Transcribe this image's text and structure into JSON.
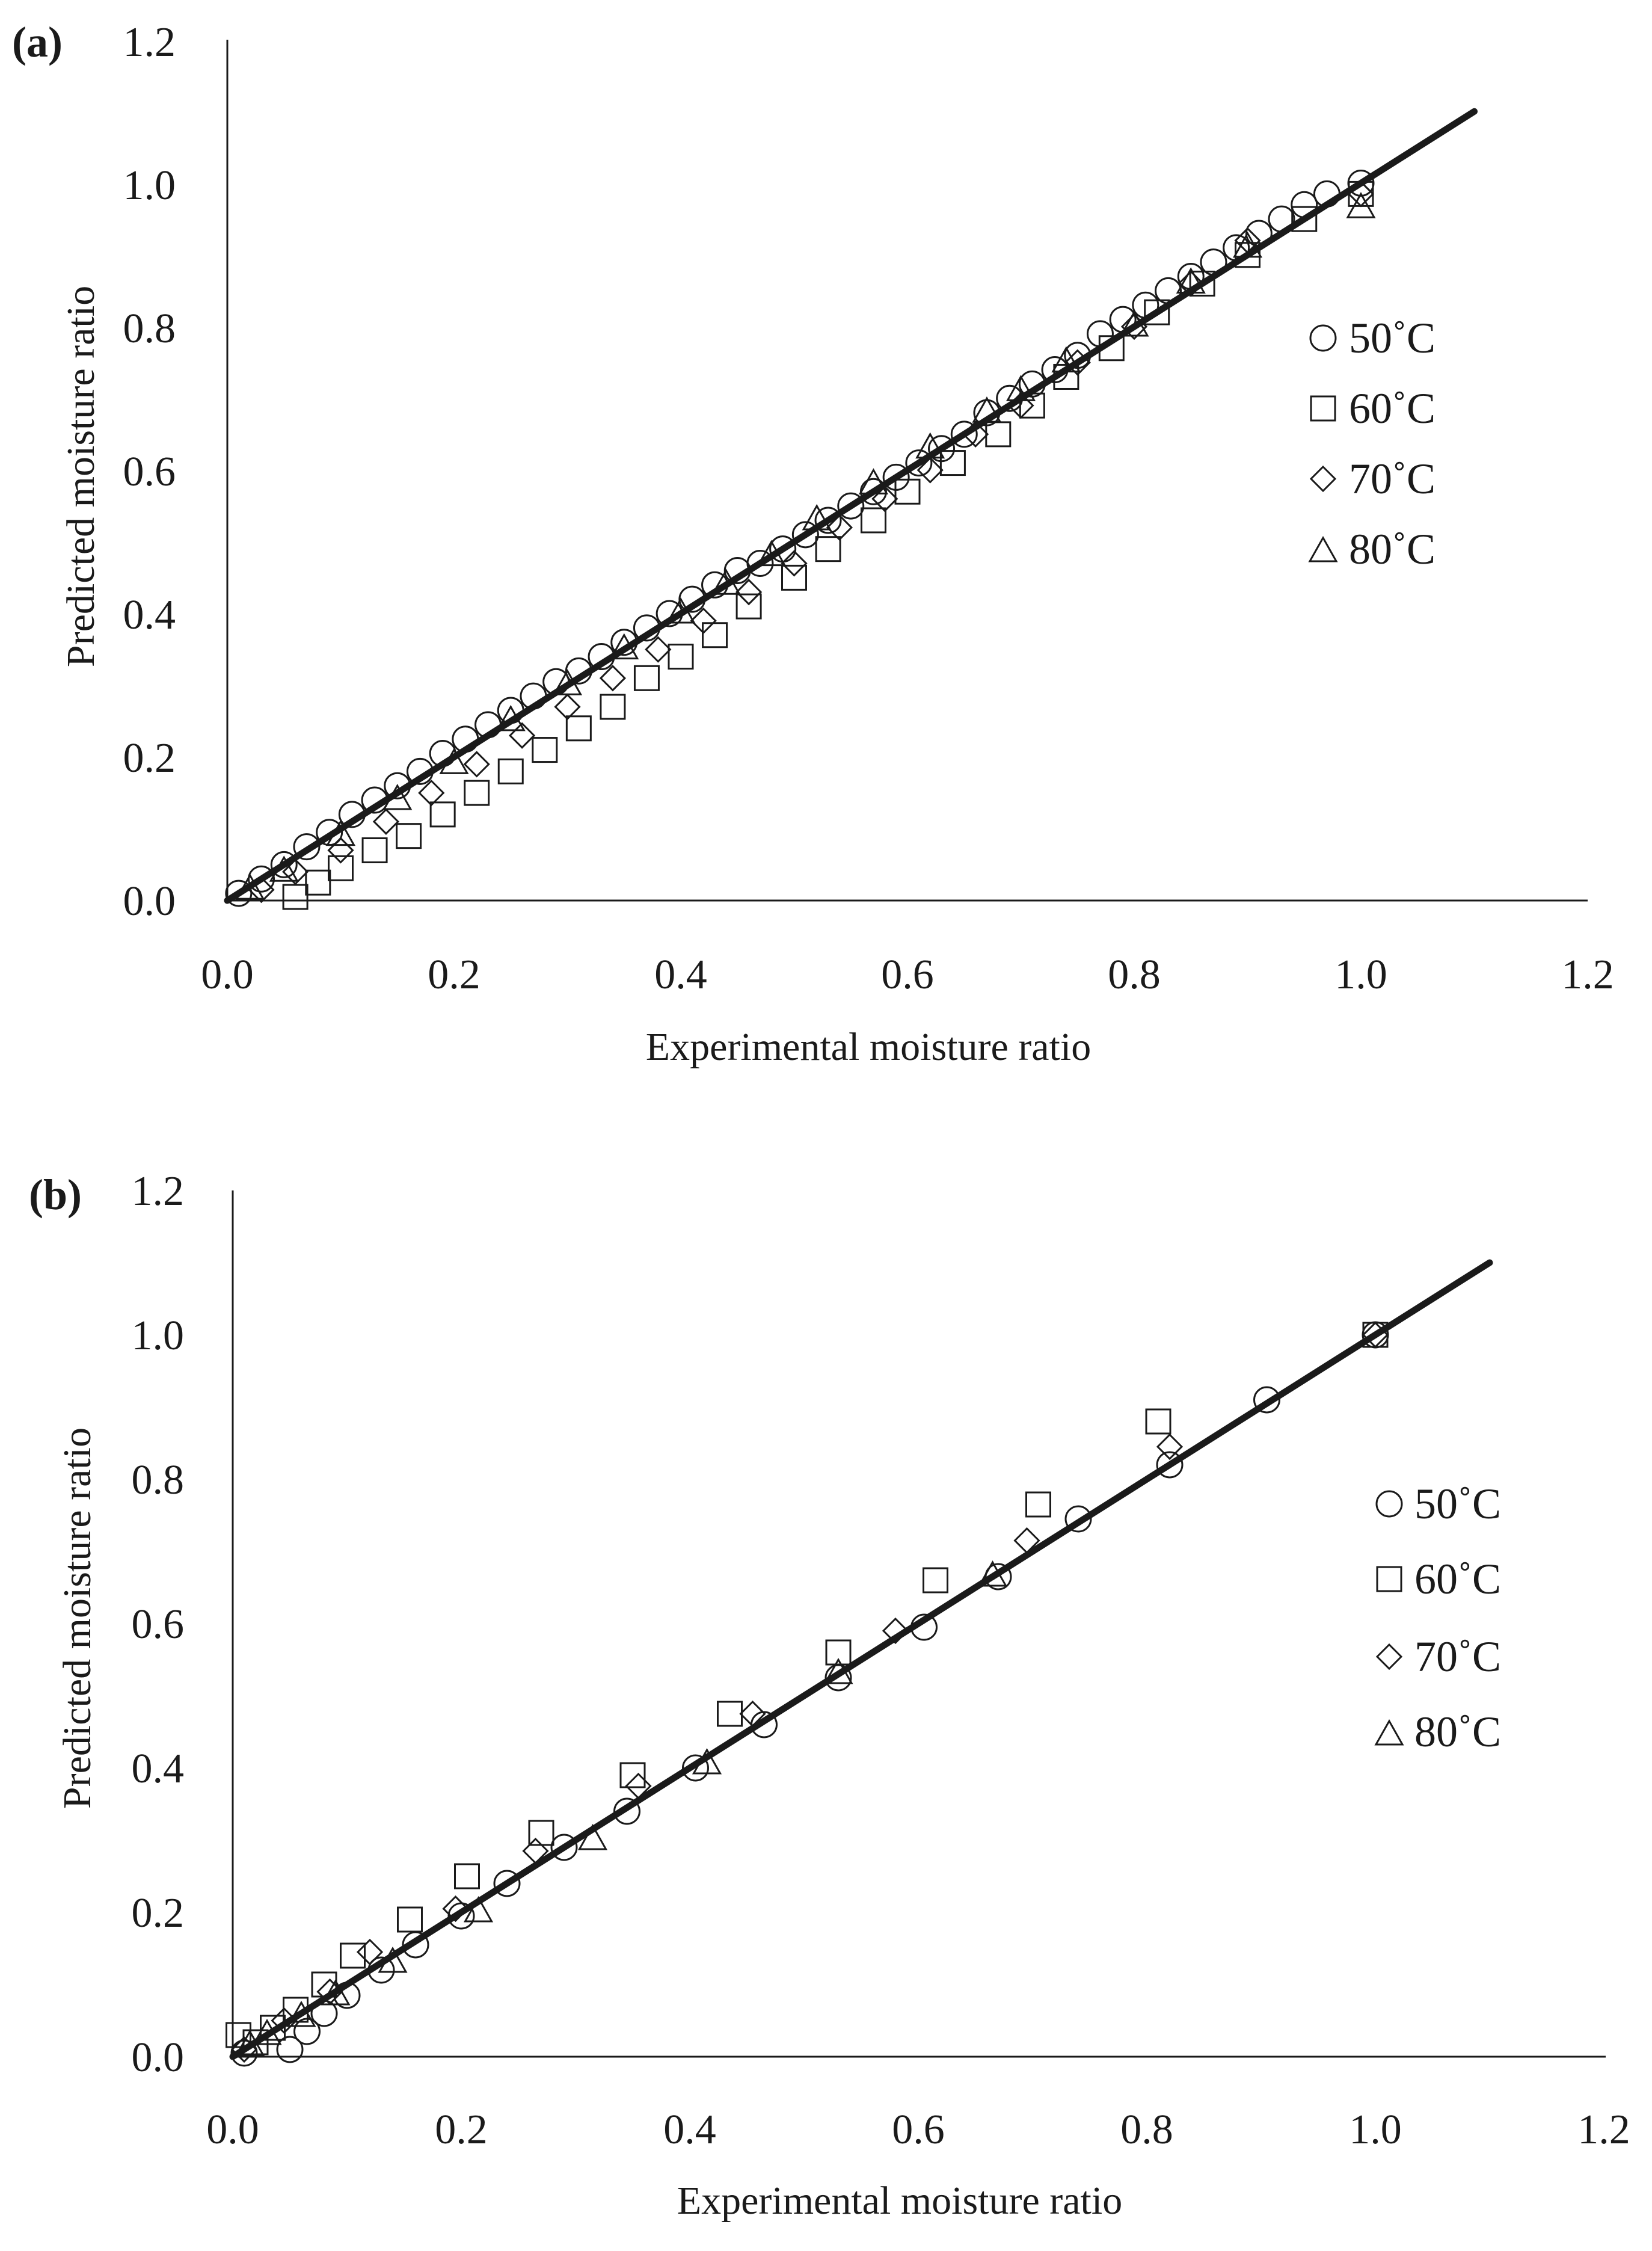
{
  "colors": {
    "ink": "#1a1a1a",
    "background": "#ffffff"
  },
  "chart_data": [
    {
      "panel_label": "(a)",
      "type": "scatter",
      "xlabel": "Experimental moisture ratio",
      "ylabel": "Predicted moisture ratio",
      "xlim": [
        0,
        1.2
      ],
      "ylim": [
        0,
        1.2
      ],
      "x_ticks": [
        "0.0",
        "0.2",
        "0.4",
        "0.6",
        "0.8",
        "1.0",
        "1.2"
      ],
      "y_ticks": [
        "0.0",
        "0.2",
        "0.4",
        "0.6",
        "0.8",
        "1.0",
        "1.2"
      ],
      "grid": false,
      "legend_position": "right",
      "reference_line": {
        "x": [
          0,
          1.1
        ],
        "y": [
          0,
          1.1
        ]
      },
      "series": [
        {
          "name": "50˚C",
          "marker": "circle-marker-icon",
          "x": [
            1.0,
            0.97,
            0.95,
            0.93,
            0.91,
            0.89,
            0.87,
            0.85,
            0.83,
            0.81,
            0.79,
            0.77,
            0.75,
            0.73,
            0.71,
            0.69,
            0.67,
            0.65,
            0.63,
            0.61,
            0.59,
            0.57,
            0.55,
            0.53,
            0.51,
            0.49,
            0.47,
            0.45,
            0.43,
            0.41,
            0.39,
            0.37,
            0.35,
            0.33,
            0.31,
            0.29,
            0.27,
            0.25,
            0.23,
            0.21,
            0.19,
            0.17,
            0.15,
            0.13,
            0.11,
            0.09,
            0.07,
            0.05,
            0.03,
            0.01
          ],
          "y": [
            1.0,
            0.985,
            0.97,
            0.95,
            0.93,
            0.91,
            0.89,
            0.87,
            0.85,
            0.83,
            0.81,
            0.79,
            0.76,
            0.74,
            0.72,
            0.7,
            0.68,
            0.65,
            0.63,
            0.61,
            0.59,
            0.57,
            0.55,
            0.53,
            0.51,
            0.49,
            0.47,
            0.46,
            0.44,
            0.42,
            0.4,
            0.38,
            0.36,
            0.34,
            0.32,
            0.305,
            0.285,
            0.265,
            0.245,
            0.225,
            0.205,
            0.18,
            0.16,
            0.14,
            0.12,
            0.095,
            0.075,
            0.05,
            0.03,
            0.01
          ]
        },
        {
          "name": "60˚C",
          "marker": "square-marker-icon",
          "x": [
            1.0,
            0.95,
            0.9,
            0.86,
            0.82,
            0.78,
            0.74,
            0.71,
            0.68,
            0.64,
            0.6,
            0.57,
            0.53,
            0.5,
            0.46,
            0.43,
            0.4,
            0.37,
            0.34,
            0.31,
            0.28,
            0.25,
            0.22,
            0.19,
            0.16,
            0.13,
            0.1,
            0.08,
            0.06
          ],
          "y": [
            0.985,
            0.95,
            0.9,
            0.86,
            0.82,
            0.77,
            0.73,
            0.69,
            0.65,
            0.61,
            0.57,
            0.53,
            0.49,
            0.45,
            0.41,
            0.37,
            0.34,
            0.31,
            0.27,
            0.24,
            0.21,
            0.18,
            0.15,
            0.12,
            0.09,
            0.07,
            0.045,
            0.025,
            0.005
          ]
        },
        {
          "name": "70˚C",
          "marker": "diamond-marker-icon",
          "x": [
            1.0,
            0.9,
            0.85,
            0.8,
            0.75,
            0.7,
            0.66,
            0.62,
            0.58,
            0.54,
            0.5,
            0.46,
            0.42,
            0.38,
            0.34,
            0.3,
            0.26,
            0.22,
            0.18,
            0.14,
            0.1,
            0.06,
            0.03
          ],
          "y": [
            0.985,
            0.92,
            0.86,
            0.8,
            0.75,
            0.69,
            0.65,
            0.6,
            0.56,
            0.52,
            0.47,
            0.43,
            0.39,
            0.35,
            0.31,
            0.27,
            0.23,
            0.19,
            0.15,
            0.11,
            0.07,
            0.04,
            0.015
          ]
        },
        {
          "name": "80˚C",
          "marker": "triangle-marker-icon",
          "x": [
            1.0,
            0.9,
            0.85,
            0.8,
            0.74,
            0.7,
            0.67,
            0.62,
            0.57,
            0.52,
            0.48,
            0.44,
            0.4,
            0.35,
            0.3,
            0.25,
            0.2,
            0.15,
            0.1,
            0.05,
            0.02
          ],
          "y": [
            0.965,
            0.91,
            0.86,
            0.8,
            0.75,
            0.71,
            0.68,
            0.63,
            0.58,
            0.53,
            0.48,
            0.44,
            0.4,
            0.35,
            0.3,
            0.25,
            0.19,
            0.14,
            0.09,
            0.04,
            0.015
          ]
        }
      ]
    },
    {
      "panel_label": "(b)",
      "type": "scatter",
      "xlabel": "Experimental moisture ratio",
      "ylabel": "Predicted moisture ratio",
      "xlim": [
        0,
        1.2
      ],
      "ylim": [
        0,
        1.2
      ],
      "x_ticks": [
        "0.0",
        "0.2",
        "0.4",
        "0.6",
        "0.8",
        "1.0",
        "1.2"
      ],
      "y_ticks": [
        "0.0",
        "0.2",
        "0.4",
        "0.6",
        "0.8",
        "1.0",
        "1.2"
      ],
      "grid": false,
      "legend_position": "right",
      "reference_line": {
        "x": [
          0,
          1.1
        ],
        "y": [
          0,
          1.1
        ]
      },
      "series": [
        {
          "name": "50˚C",
          "marker": "circle-marker-icon",
          "x": [
            1.0,
            0.905,
            0.82,
            0.74,
            0.67,
            0.605,
            0.53,
            0.465,
            0.405,
            0.345,
            0.29,
            0.24,
            0.16,
            0.2,
            0.13,
            0.1,
            0.08,
            0.065,
            0.05,
            0.01
          ],
          "y": [
            1.0,
            0.91,
            0.82,
            0.745,
            0.665,
            0.595,
            0.525,
            0.46,
            0.4,
            0.34,
            0.29,
            0.24,
            0.155,
            0.195,
            0.12,
            0.085,
            0.06,
            0.035,
            0.01,
            0.005
          ]
        },
        {
          "name": "60˚C",
          "marker": "square-marker-icon",
          "x": [
            1.0,
            0.81,
            0.705,
            0.615,
            0.53,
            0.435,
            0.35,
            0.27,
            0.205,
            0.155,
            0.105,
            0.08,
            0.055,
            0.035,
            0.02,
            0.005
          ],
          "y": [
            1.0,
            0.88,
            0.765,
            0.66,
            0.56,
            0.475,
            0.39,
            0.31,
            0.25,
            0.19,
            0.14,
            0.1,
            0.065,
            0.04,
            0.02,
            0.03
          ]
        },
        {
          "name": "70˚C",
          "marker": "diamond-marker-icon",
          "x": [
            1.0,
            0.82,
            0.695,
            0.58,
            0.455,
            0.355,
            0.265,
            0.195,
            0.12,
            0.085,
            0.045,
            0.01
          ],
          "y": [
            1.0,
            0.845,
            0.715,
            0.59,
            0.475,
            0.375,
            0.285,
            0.205,
            0.145,
            0.09,
            0.05,
            0.01
          ]
        },
        {
          "name": "80˚C",
          "marker": "triangle-marker-icon",
          "x": [
            0.665,
            0.53,
            0.415,
            0.315,
            0.215,
            0.14,
            0.09,
            0.06,
            0.03,
            0.015
          ],
          "y": [
            0.665,
            0.53,
            0.405,
            0.3,
            0.2,
            0.13,
            0.085,
            0.055,
            0.03,
            0.015
          ]
        }
      ]
    }
  ]
}
